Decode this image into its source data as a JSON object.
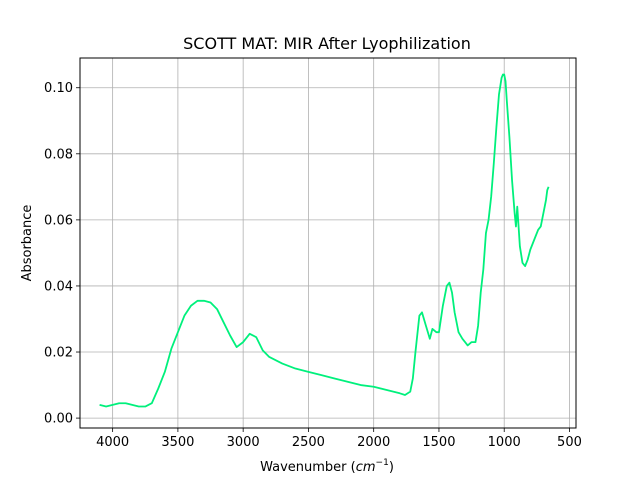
{
  "chart_data": {
    "type": "line",
    "title": "SCOTT MAT: MIR After Lyophilization",
    "xlabel_main": "Wavenumber (",
    "xlabel_math": "cm",
    "xlabel_sup": "−1",
    "xlabel_close": ")",
    "ylabel": "Absorbance",
    "xlim": [
      4250,
      450
    ],
    "ylim": [
      -0.003,
      0.109
    ],
    "x_reversed": true,
    "grid": true,
    "x_ticks": [
      4000,
      3500,
      3000,
      2500,
      2000,
      1500,
      1000,
      500
    ],
    "x_tick_labels": [
      "4000",
      "3500",
      "3000",
      "2500",
      "2000",
      "1500",
      "1000",
      "500"
    ],
    "y_ticks": [
      0.0,
      0.02,
      0.04,
      0.06,
      0.08,
      0.1
    ],
    "y_tick_labels": [
      "0.00",
      "0.02",
      "0.04",
      "0.06",
      "0.08",
      "0.10"
    ],
    "series": [
      {
        "color": "#00f07c",
        "x": [
          4100,
          4050,
          4000,
          3950,
          3900,
          3850,
          3800,
          3750,
          3700,
          3650,
          3600,
          3550,
          3500,
          3450,
          3400,
          3350,
          3300,
          3250,
          3200,
          3150,
          3100,
          3050,
          3000,
          2950,
          2900,
          2850,
          2800,
          2700,
          2600,
          2500,
          2400,
          2300,
          2200,
          2100,
          2000,
          1900,
          1850,
          1800,
          1760,
          1720,
          1700,
          1680,
          1650,
          1630,
          1600,
          1570,
          1550,
          1520,
          1500,
          1470,
          1440,
          1420,
          1400,
          1380,
          1350,
          1320,
          1300,
          1280,
          1250,
          1220,
          1200,
          1180,
          1160,
          1140,
          1120,
          1100,
          1080,
          1060,
          1040,
          1020,
          1010,
          1000,
          990,
          980,
          960,
          940,
          920,
          910,
          900,
          890,
          880,
          860,
          840,
          820,
          800,
          780,
          760,
          740,
          720,
          700,
          680,
          670,
          660
        ],
        "y": [
          0.004,
          0.0035,
          0.004,
          0.0045,
          0.0045,
          0.004,
          0.0035,
          0.0035,
          0.0045,
          0.009,
          0.014,
          0.021,
          0.026,
          0.031,
          0.034,
          0.0355,
          0.0355,
          0.035,
          0.033,
          0.029,
          0.025,
          0.0215,
          0.023,
          0.0255,
          0.0245,
          0.0205,
          0.0185,
          0.0165,
          0.015,
          0.014,
          0.013,
          0.012,
          0.011,
          0.01,
          0.0095,
          0.0085,
          0.008,
          0.0075,
          0.007,
          0.008,
          0.012,
          0.02,
          0.031,
          0.032,
          0.028,
          0.024,
          0.027,
          0.026,
          0.026,
          0.034,
          0.04,
          0.041,
          0.038,
          0.032,
          0.026,
          0.024,
          0.023,
          0.022,
          0.023,
          0.023,
          0.028,
          0.038,
          0.045,
          0.056,
          0.06,
          0.067,
          0.077,
          0.088,
          0.098,
          0.103,
          0.104,
          0.104,
          0.102,
          0.096,
          0.085,
          0.072,
          0.062,
          0.058,
          0.064,
          0.058,
          0.052,
          0.047,
          0.046,
          0.048,
          0.051,
          0.053,
          0.055,
          0.057,
          0.058,
          0.062,
          0.066,
          0.069,
          0.07
        ]
      }
    ]
  }
}
